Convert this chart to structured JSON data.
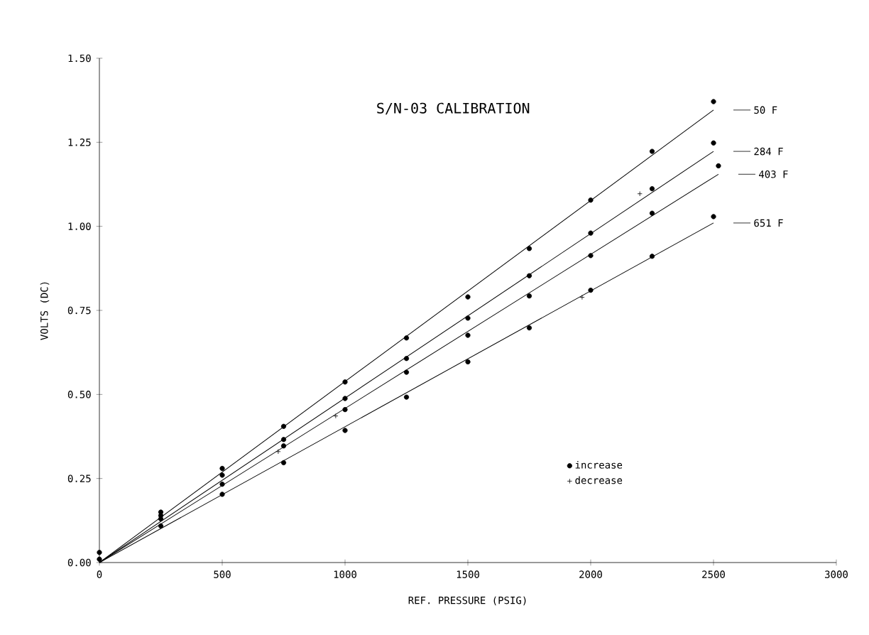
{
  "chart_data": {
    "type": "scatter",
    "title": "S/N-03 CALIBRATION",
    "xlabel": "REF. PRESSURE (PSIG)",
    "ylabel": "VOLTS (DC)",
    "xlim": [
      0,
      3000
    ],
    "ylim": [
      0,
      1.5
    ],
    "xticks": [
      0,
      500,
      1000,
      1500,
      2000,
      2500,
      3000
    ],
    "yticks": [
      {
        "value": 0,
        "label": "0.00"
      },
      {
        "value": 0.25,
        "label": "0.25"
      },
      {
        "value": 0.5,
        "label": "0.50"
      },
      {
        "value": 0.75,
        "label": "0.75"
      },
      {
        "value": 1,
        "label": "1.00"
      },
      {
        "value": 1.25,
        "label": "1.25"
      },
      {
        "value": 1.5,
        "label": "1.50"
      }
    ],
    "grid": false,
    "legend": "right",
    "series": [
      {
        "name": "increase",
        "marker": "circle",
        "color": "#000000",
        "x": [
          0,
          250,
          500,
          750,
          1000,
          1250,
          1500,
          1750,
          2000,
          2250,
          2500,
          250,
          500,
          750,
          1000,
          1250,
          1500,
          1750,
          2000,
          2250,
          2500,
          250,
          500,
          750,
          1000,
          1250,
          1500,
          1750,
          2000,
          2250,
          2520,
          0,
          250,
          500,
          750,
          1000,
          1250,
          1500,
          1750,
          2000,
          2250,
          2500
        ],
        "values": [
          0.03,
          0.15,
          0.28,
          0.405,
          0.537,
          0.668,
          0.79,
          0.934,
          1.078,
          1.223,
          1.371,
          0.14,
          0.26,
          0.366,
          0.488,
          0.607,
          0.727,
          0.853,
          0.98,
          1.112,
          1.248,
          0.13,
          0.233,
          0.347,
          0.455,
          0.566,
          0.676,
          0.793,
          0.913,
          1.039,
          1.18,
          0.01,
          0.109,
          0.203,
          0.297,
          0.393,
          0.492,
          0.597,
          0.698,
          0.81,
          0.911,
          1.029
        ]
      },
      {
        "name": "decrease",
        "marker": "cross",
        "color": "#000000",
        "x": [
          728,
          962,
          2200,
          1965
        ],
        "values": [
          0.33,
          0.436,
          1.097,
          0.789
        ]
      },
      {
        "name": "50 F",
        "type": "line",
        "line_style": "solid",
        "color": "#000000",
        "x": [
          0,
          2500
        ],
        "values": [
          0,
          1.346
        ]
      },
      {
        "name": "284 F",
        "type": "line",
        "line_style": "solid",
        "color": "#000000",
        "x": [
          0,
          2500
        ],
        "values": [
          0,
          1.223
        ]
      },
      {
        "name": "403 F",
        "type": "line",
        "line_style": "solid",
        "color": "#000000",
        "x": [
          0,
          2520
        ],
        "values": [
          0,
          1.155
        ]
      },
      {
        "name": "651 F",
        "type": "line",
        "line_style": "solid",
        "color": "#000000",
        "x": [
          0,
          2500
        ],
        "values": [
          0,
          1.01
        ]
      }
    ]
  }
}
